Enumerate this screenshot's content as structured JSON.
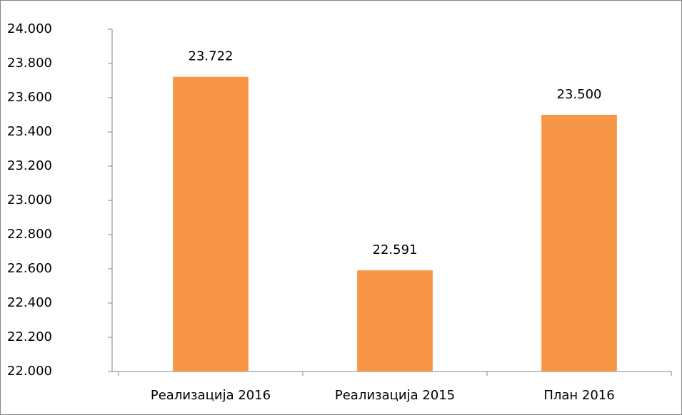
{
  "chart_data": {
    "type": "bar",
    "categories": [
      "Реализација 2016",
      "Реализација 2015",
      "План 2016"
    ],
    "values": [
      23722,
      22591,
      23500
    ],
    "value_labels": [
      "23.722",
      "22.591",
      "23.500"
    ],
    "color": "#f79646",
    "ylim": [
      22000,
      24000
    ],
    "yticks": [
      {
        "value": 22000,
        "label": "22.000"
      },
      {
        "value": 22200,
        "label": "22.200"
      },
      {
        "value": 22400,
        "label": "22.400"
      },
      {
        "value": 22600,
        "label": "22.600"
      },
      {
        "value": 22800,
        "label": "22.800"
      },
      {
        "value": 23000,
        "label": "23.000"
      },
      {
        "value": 23200,
        "label": "23.200"
      },
      {
        "value": 23400,
        "label": "23.400"
      },
      {
        "value": 23600,
        "label": "23.600"
      },
      {
        "value": 23800,
        "label": "23.800"
      },
      {
        "value": 24000,
        "label": "24.000"
      }
    ],
    "grid": false
  }
}
